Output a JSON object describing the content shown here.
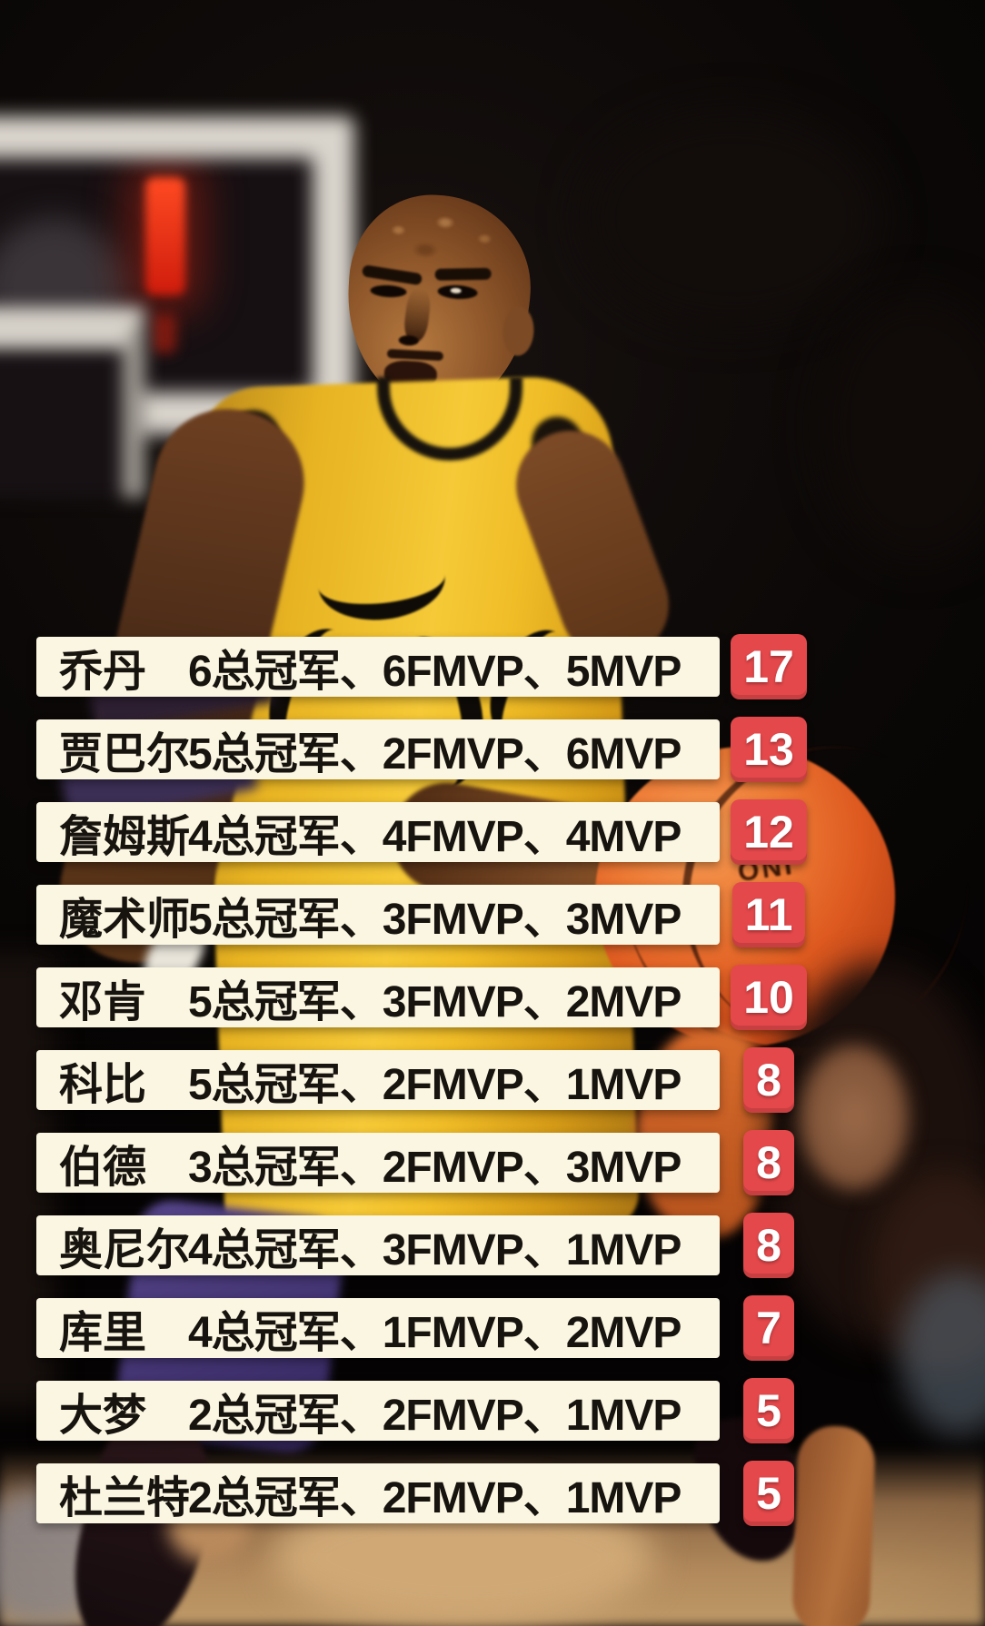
{
  "chart_data": {
    "type": "table",
    "title": "",
    "rows": [
      {
        "player": "乔丹",
        "championships": 6,
        "fmvp": 6,
        "mvp": 5,
        "total": 17
      },
      {
        "player": "贾巴尔",
        "championships": 5,
        "fmvp": 2,
        "mvp": 6,
        "total": 13
      },
      {
        "player": "詹姆斯",
        "championships": 4,
        "fmvp": 4,
        "mvp": 4,
        "total": 12
      },
      {
        "player": "魔术师",
        "championships": 5,
        "fmvp": 3,
        "mvp": 3,
        "total": 11
      },
      {
        "player": "邓肯",
        "championships": 5,
        "fmvp": 3,
        "mvp": 2,
        "total": 10
      },
      {
        "player": "科比",
        "championships": 5,
        "fmvp": 2,
        "mvp": 1,
        "total": 8
      },
      {
        "player": "伯德",
        "championships": 3,
        "fmvp": 2,
        "mvp": 3,
        "total": 8
      },
      {
        "player": "奥尼尔",
        "championships": 4,
        "fmvp": 3,
        "mvp": 1,
        "total": 8
      },
      {
        "player": "库里",
        "championships": 4,
        "fmvp": 1,
        "mvp": 2,
        "total": 7
      },
      {
        "player": "大梦",
        "championships": 2,
        "fmvp": 2,
        "mvp": 1,
        "total": 5
      },
      {
        "player": "杜兰特",
        "championships": 2,
        "fmvp": 2,
        "mvp": 1,
        "total": 5
      }
    ]
  },
  "list": {
    "rows": [
      {
        "player": "乔丹",
        "stats": "6总冠军、6FMVP、5MVP",
        "total": "17"
      },
      {
        "player": "贾巴尔",
        "stats": "5总冠军、2FMVP、6MVP",
        "total": "13"
      },
      {
        "player": "詹姆斯",
        "stats": "4总冠军、4FMVP、4MVP",
        "total": "12"
      },
      {
        "player": "魔术师",
        "stats": "5总冠军、3FMVP、3MVP",
        "total": "11"
      },
      {
        "player": "邓肯",
        "stats": "5总冠军、3FMVP、2MVP",
        "total": "10"
      },
      {
        "player": "科比",
        "stats": "5总冠军、2FMVP、1MVP",
        "total": "8"
      },
      {
        "player": "伯德",
        "stats": "3总冠军、2FMVP、3MVP",
        "total": "8"
      },
      {
        "player": "奥尼尔",
        "stats": "4总冠军、3FMVP、1MVP",
        "total": "8"
      },
      {
        "player": "库里",
        "stats": "4总冠军、1FMVP、2MVP",
        "total": "7"
      },
      {
        "player": "大梦",
        "stats": "2总冠军、2FMVP、1MVP",
        "total": "5"
      },
      {
        "player": "杜兰特",
        "stats": "2总冠军、2FMVP、1MVP",
        "total": "5"
      }
    ]
  },
  "decor": {
    "ball_print": "ONI"
  },
  "colors": {
    "bar_bg": "#fbf6e1",
    "bar_text": "#17130e",
    "badge_bg": "#e4484b",
    "badge_text": "#ffffff"
  }
}
